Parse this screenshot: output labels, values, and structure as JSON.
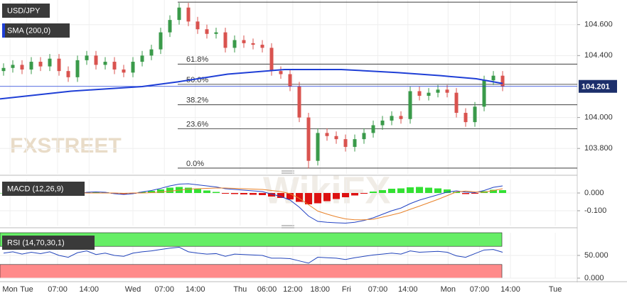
{
  "chart_data": [
    {
      "type": "candlestick",
      "title": "USD/JPY",
      "indicator": "SMA (200,0)",
      "indicator_color": "#1f3fd6",
      "up_color": "#3a9a4a",
      "down_color": "#d9534f",
      "grid": true,
      "x": [
        0,
        2,
        4,
        6,
        8,
        10,
        12,
        14,
        16,
        18,
        20,
        22,
        24,
        26,
        28,
        30,
        32,
        34,
        36,
        38,
        40,
        42,
        44,
        46,
        48,
        50,
        52,
        54,
        56,
        58,
        60,
        62,
        64,
        66,
        68,
        70,
        72,
        74,
        76,
        78,
        80,
        82,
        84,
        86,
        88,
        90,
        92,
        94,
        96,
        98,
        100,
        102,
        104,
        106,
        108
      ],
      "open": [
        104.3,
        104.32,
        104.34,
        104.31,
        104.36,
        104.33,
        104.38,
        104.3,
        104.26,
        104.37,
        104.4,
        104.34,
        104.36,
        104.31,
        104.29,
        104.36,
        104.4,
        104.44,
        104.55,
        104.63,
        104.71,
        104.62,
        104.57,
        104.54,
        104.55,
        104.45,
        104.5,
        104.48,
        104.47,
        104.45,
        104.3,
        104.28,
        104.2,
        104.0,
        103.72,
        103.9,
        103.88,
        103.86,
        103.81,
        103.86,
        103.9,
        103.95,
        103.98,
        104.01,
        103.99,
        104.17,
        104.14,
        104.16,
        104.18,
        104.16,
        104.03,
        103.97,
        104.07,
        104.24,
        104.27
      ],
      "high": [
        104.35,
        104.37,
        104.37,
        104.39,
        104.39,
        104.41,
        104.41,
        104.33,
        104.4,
        104.43,
        104.43,
        104.39,
        104.39,
        104.34,
        104.39,
        104.43,
        104.47,
        104.58,
        104.66,
        104.74,
        104.74,
        104.65,
        104.6,
        104.58,
        104.58,
        104.53,
        104.53,
        104.51,
        104.5,
        104.48,
        104.33,
        104.31,
        104.23,
        104.03,
        103.93,
        103.93,
        103.91,
        103.89,
        103.89,
        103.93,
        103.98,
        104.01,
        104.04,
        104.04,
        104.2,
        104.2,
        104.19,
        104.21,
        104.21,
        104.19,
        104.06,
        104.1,
        104.27,
        104.3,
        104.3
      ],
      "low": [
        104.27,
        104.29,
        104.28,
        104.28,
        104.3,
        104.3,
        104.27,
        104.23,
        104.23,
        104.34,
        104.31,
        104.31,
        104.28,
        104.26,
        104.26,
        104.33,
        104.37,
        104.41,
        104.52,
        104.6,
        104.59,
        104.54,
        104.51,
        104.51,
        104.42,
        104.42,
        104.45,
        104.44,
        104.42,
        104.27,
        104.25,
        104.17,
        103.97,
        103.67,
        103.69,
        103.85,
        103.83,
        103.78,
        103.78,
        103.83,
        103.87,
        103.92,
        103.95,
        103.96,
        103.96,
        104.11,
        104.11,
        104.13,
        104.13,
        104.0,
        103.94,
        103.94,
        104.04,
        104.21,
        104.17
      ],
      "close": [
        104.32,
        104.34,
        104.31,
        104.36,
        104.33,
        104.38,
        104.3,
        104.26,
        104.37,
        104.4,
        104.34,
        104.36,
        104.31,
        104.29,
        104.36,
        104.4,
        104.44,
        104.55,
        104.63,
        104.71,
        104.62,
        104.57,
        104.54,
        104.55,
        104.45,
        104.5,
        104.48,
        104.47,
        104.45,
        104.3,
        104.28,
        104.2,
        104.0,
        103.72,
        103.9,
        103.88,
        103.86,
        103.81,
        103.86,
        103.9,
        103.95,
        103.98,
        104.01,
        103.99,
        104.17,
        104.14,
        104.16,
        104.18,
        104.16,
        104.03,
        103.97,
        104.07,
        104.24,
        104.27,
        104.2
      ],
      "sma_x": [
        -0.77,
        14.6,
        30,
        37.7,
        48.5,
        60.8,
        73.1,
        85.4,
        94.6,
        102.3,
        108
      ],
      "sma": [
        104.12,
        104.17,
        104.2,
        104.23,
        104.28,
        104.31,
        104.31,
        104.29,
        104.27,
        104.25,
        104.22
      ],
      "last_price": {
        "value": 104.201,
        "label": "104.201"
      },
      "fib_levels": [
        {
          "value": 104.745,
          "label": ""
        },
        {
          "value": 104.345,
          "label": "61.8%"
        },
        {
          "value": 104.214,
          "label": "50.0%"
        },
        {
          "value": 104.082,
          "label": "38.2%"
        },
        {
          "value": 103.927,
          "label": "23.6%"
        },
        {
          "value": 103.673,
          "label": "0.0%"
        }
      ],
      "ylim": [
        103.636,
        104.759
      ],
      "yticks": [
        {
          "value": 104.6,
          "label": "104.600"
        },
        {
          "value": 104.4,
          "label": "104.400"
        },
        {
          "value": 104.0,
          "label": "104.000"
        },
        {
          "value": 103.8,
          "label": "103.800"
        }
      ],
      "xlim": [
        -0.77,
        124.15
      ],
      "xticks": [
        {
          "value": 1.4,
          "label": "Mon"
        },
        {
          "value": 5,
          "label": "Tue"
        },
        {
          "value": 11.7,
          "label": "07:00"
        },
        {
          "value": 18.5,
          "label": "14:00"
        },
        {
          "value": 28,
          "label": "Wed"
        },
        {
          "value": 34.8,
          "label": "07:00"
        },
        {
          "value": 41.5,
          "label": "14:00"
        },
        {
          "value": 51.2,
          "label": "Thu"
        },
        {
          "value": 57,
          "label": "06:00"
        },
        {
          "value": 62.6,
          "label": "12:00"
        },
        {
          "value": 68.5,
          "label": "18:00"
        },
        {
          "value": 74.2,
          "label": "Fri"
        },
        {
          "value": 81,
          "label": "07:00"
        },
        {
          "value": 87.5,
          "label": "14:00"
        },
        {
          "value": 96.2,
          "label": "Mon"
        },
        {
          "value": 103,
          "label": "07:00"
        },
        {
          "value": 109.7,
          "label": "14:00"
        },
        {
          "value": 119.4,
          "label": "Tue"
        }
      ],
      "watermarks": [
        "FXSTREET",
        "WikiFX"
      ]
    },
    {
      "type": "macd",
      "title": "MACD (12,26,9)",
      "ylim": [
        -0.184,
        0.076
      ],
      "yticks": [
        {
          "value": 0,
          "label": "0.000"
        },
        {
          "value": -0.1,
          "label": "-0.100"
        }
      ],
      "histogram": [
        0,
        0,
        -0.005,
        -0.005,
        -0.01,
        -0.01,
        -0.01,
        -0.012,
        -0.008,
        0.004,
        0.006,
        0.004,
        -0.004,
        -0.006,
        -0.004,
        0.006,
        0.012,
        0.02,
        0.03,
        0.034,
        0.03,
        0.022,
        0.014,
        0.006,
        -0.004,
        -0.006,
        -0.008,
        -0.01,
        -0.012,
        -0.02,
        -0.028,
        -0.036,
        -0.05,
        -0.064,
        -0.058,
        -0.046,
        -0.034,
        -0.024,
        -0.014,
        -0.004,
        0.008,
        0.016,
        0.024,
        0.026,
        0.032,
        0.034,
        0.03,
        0.026,
        0.02,
        0.006,
        -0.006,
        -0.004,
        0.01,
        0.018,
        0.016
      ],
      "series": [
        {
          "color": "#2343c4",
          "values": [
            0.012,
            0.01,
            0.006,
            0.004,
            0,
            -0.004,
            -0.006,
            -0.01,
            -0.006,
            0.004,
            0.006,
            0.004,
            -0.004,
            -0.008,
            -0.004,
            0.006,
            0.014,
            0.026,
            0.04,
            0.05,
            0.052,
            0.046,
            0.04,
            0.034,
            0.024,
            0.02,
            0.016,
            0.012,
            0.008,
            -0.006,
            -0.02,
            -0.04,
            -0.08,
            -0.13,
            -0.16,
            -0.165,
            -0.168,
            -0.17,
            -0.165,
            -0.155,
            -0.14,
            -0.12,
            -0.1,
            -0.085,
            -0.06,
            -0.04,
            -0.025,
            -0.01,
            0.005,
            0.012,
            0.005,
            0.002,
            0.014,
            0.032,
            0.04
          ]
        },
        {
          "color": "#e8822a",
          "values": [
            0.012,
            0.01,
            0.011,
            0.009,
            0.01,
            0.006,
            0.004,
            0.002,
            0.002,
            0,
            0,
            0,
            0,
            -0.002,
            0,
            0,
            0.002,
            0.006,
            0.01,
            0.016,
            0.022,
            0.024,
            0.026,
            0.028,
            0.028,
            0.026,
            0.024,
            0.022,
            0.02,
            0.014,
            0.008,
            -0.004,
            -0.03,
            -0.066,
            -0.102,
            -0.119,
            -0.134,
            -0.146,
            -0.151,
            -0.151,
            -0.148,
            -0.136,
            -0.124,
            -0.111,
            -0.092,
            -0.074,
            -0.055,
            -0.036,
            -0.015,
            0.006,
            0.011,
            0.006,
            0.004,
            0.014,
            0.024
          ]
        }
      ],
      "up_color": "#33e033",
      "down_color": "#dd1111"
    },
    {
      "type": "rsi",
      "title": "RSI (14,70,30,1)",
      "ylim": [
        0,
        100
      ],
      "overbought": 70,
      "oversold": 30,
      "color": "#2244bb",
      "yticks": [
        {
          "value": 50,
          "label": "50.000"
        },
        {
          "value": 0,
          "label": "0.000"
        }
      ],
      "values": [
        55,
        58,
        53,
        57,
        54,
        58,
        50,
        46,
        56,
        60,
        52,
        55,
        50,
        48,
        55,
        58,
        60,
        63,
        66,
        68,
        58,
        55,
        53,
        54,
        48,
        53,
        52,
        51,
        50,
        44,
        44,
        43,
        38,
        33,
        46,
        45,
        44,
        41,
        45,
        48,
        51,
        53,
        55,
        53,
        60,
        57,
        58,
        59,
        57,
        49,
        46,
        54,
        62,
        63,
        57
      ]
    }
  ]
}
